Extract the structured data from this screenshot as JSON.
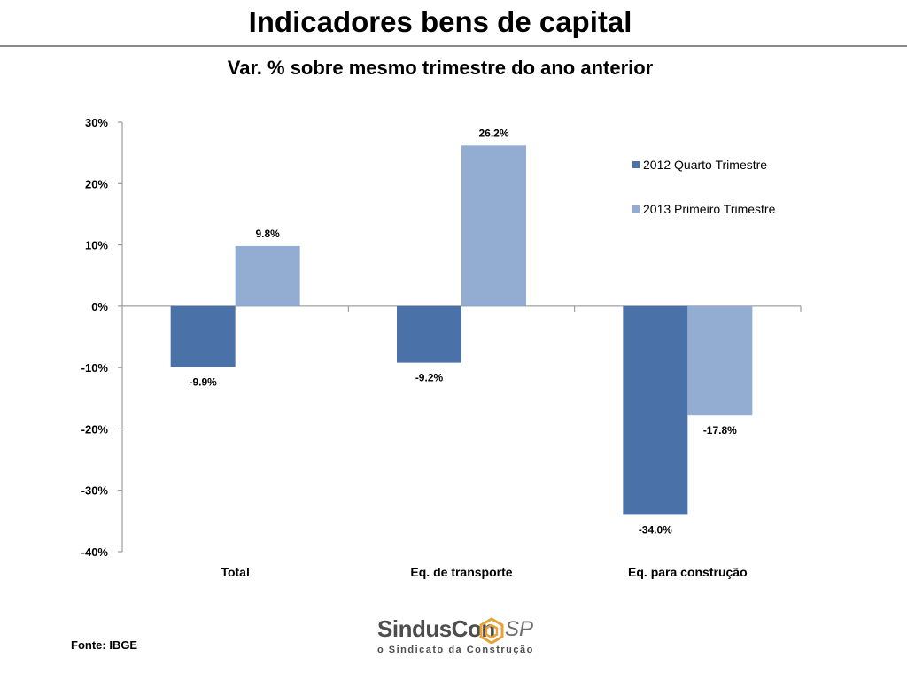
{
  "header": {
    "title": "Indicadores bens de capital"
  },
  "footer": {
    "source": "Fonte: IBGE",
    "logo_name": "SindusCon",
    "logo_region": "SP",
    "logo_tagline": "o Sindicato da Construção"
  },
  "colors": {
    "series_2012": "#4a72a8",
    "series_2013": "#93acd2",
    "axis": "#8a8a8a",
    "brand_orange": "#e8a23a"
  },
  "chart_data": {
    "type": "bar",
    "title": "Var. % sobre mesmo trimestre do ano anterior",
    "categories": [
      "Total",
      "Eq. de transporte",
      "Eq. para construção"
    ],
    "series": [
      {
        "name": "2012 Quarto Trimestre",
        "values": [
          -9.9,
          -9.2,
          -34.0
        ],
        "labels": [
          "-9.9%",
          "-9.2%",
          "-34.0%"
        ]
      },
      {
        "name": "2013 Primeiro Trimestre",
        "values": [
          9.8,
          26.2,
          -17.8
        ],
        "labels": [
          "9.8%",
          "26.2%",
          "-17.8%"
        ]
      }
    ],
    "ylim": [
      -40,
      30
    ],
    "yticks": [
      30,
      20,
      10,
      0,
      -10,
      -20,
      -30,
      -40
    ],
    "ytick_labels": [
      "30%",
      "20%",
      "10%",
      "0%",
      "-10%",
      "-20%",
      "-30%",
      "-40%"
    ],
    "legend_position": "top-right",
    "grid": false
  }
}
